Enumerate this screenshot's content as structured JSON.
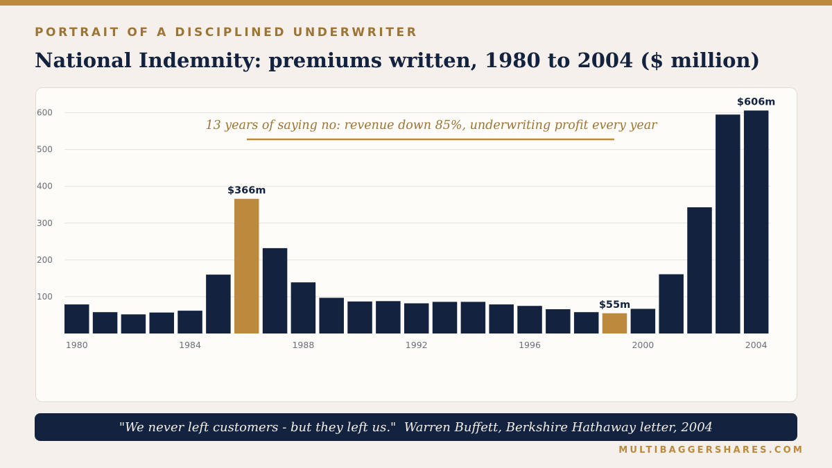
{
  "header": {
    "eyebrow": "PORTRAIT OF A DISCIPLINED UNDERWRITER",
    "title": "National Indemnity: premiums written, 1980 to 2004 ($ million)"
  },
  "quote": {
    "text": "\"We never left customers - but they left us.\"  Warren Buffett, Berkshire Hathaway letter, 2004"
  },
  "footer": {
    "site": "MULTIBAGGERSHARES.COM"
  },
  "colors": {
    "bar": "#13233f",
    "highlight": "#bb8a3c",
    "annotation": "#9c7436",
    "accent": "#bb8a3c",
    "background": "#f5f0eb"
  },
  "chart_data": {
    "type": "bar",
    "title": "National Indemnity: premiums written, 1980 to 2004 ($ million)",
    "xlabel": "",
    "ylabel": "",
    "categories": [
      "1980",
      "1981",
      "1982",
      "1983",
      "1984",
      "1985",
      "1986",
      "1987",
      "1988",
      "1989",
      "1990",
      "1991",
      "1992",
      "1993",
      "1994",
      "1995",
      "1996",
      "1997",
      "1998",
      "1999",
      "2000",
      "2001",
      "2002",
      "2003",
      "2004"
    ],
    "values": [
      79,
      58,
      52,
      57,
      62,
      160,
      366,
      232,
      139,
      97,
      87,
      88,
      82,
      86,
      86,
      79,
      75,
      66,
      58,
      55,
      67,
      161,
      343,
      595,
      606
    ],
    "x_tick_labels": [
      "1980",
      "1984",
      "1988",
      "1992",
      "1996",
      "2000",
      "2004"
    ],
    "y_ticks": [
      100,
      200,
      300,
      400,
      500,
      600
    ],
    "ylim": [
      0,
      620
    ],
    "grid": true,
    "legend": "none",
    "highlighted": [
      "1986",
      "1999"
    ],
    "data_labels": [
      {
        "category": "1986",
        "text": "$366m"
      },
      {
        "category": "1999",
        "text": "$55m"
      },
      {
        "category": "2004",
        "text": "$606m"
      }
    ],
    "annotation": "13 years of saying no: revenue down 85%, underwriting profit every year"
  }
}
